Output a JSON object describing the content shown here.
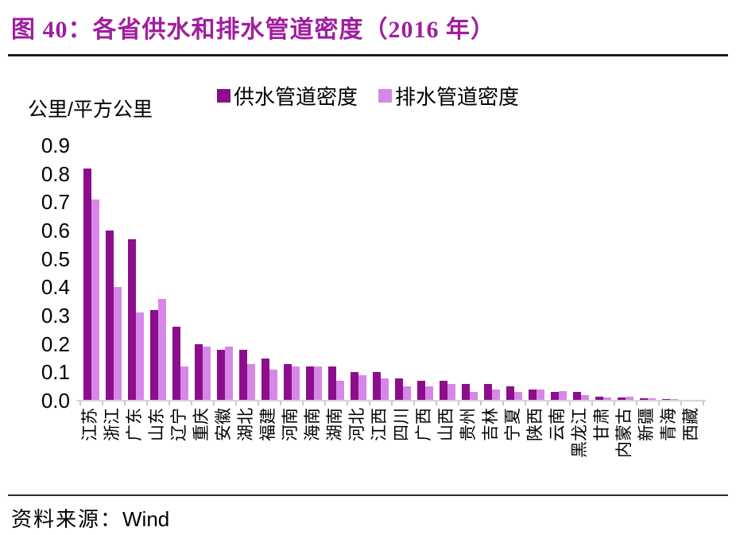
{
  "title": "图 40：各省供水和排水管道密度（2016 年）",
  "unit_label": "公里/平方公里",
  "source": {
    "prefix": "资料来源：",
    "name": "Wind"
  },
  "colors": {
    "title": "#A01D9E",
    "supply_bar": "#8C0E8C",
    "drain_bar": "#D787E8",
    "axis_line": "#D5D5D5"
  },
  "chart_data": {
    "type": "bar",
    "title": "各省供水和排水管道密度（2016 年）",
    "ylabel": "公里/平方公里",
    "xlabel": "",
    "ylim": [
      0,
      0.9
    ],
    "ytick_labels": [
      "0.0",
      "0.1",
      "0.2",
      "0.3",
      "0.4",
      "0.5",
      "0.6",
      "0.7",
      "0.8",
      "0.9"
    ],
    "grid": false,
    "legend_position": "top",
    "categories": [
      "江苏",
      "浙江",
      "广东",
      "山东",
      "辽宁",
      "重庆",
      "安徽",
      "湖北",
      "福建",
      "河南",
      "海南",
      "湖南",
      "河北",
      "江西",
      "四川",
      "广西",
      "山西",
      "贵州",
      "吉林",
      "宁夏",
      "陕西",
      "云南",
      "黑龙江",
      "甘肃",
      "内蒙古",
      "新疆",
      "青海",
      "西藏"
    ],
    "series": [
      {
        "key": "supply",
        "name": "供水管道密度",
        "color": "#8C0E8C",
        "values": [
          0.82,
          0.6,
          0.57,
          0.32,
          0.26,
          0.2,
          0.18,
          0.18,
          0.15,
          0.13,
          0.12,
          0.12,
          0.1,
          0.1,
          0.08,
          0.07,
          0.07,
          0.06,
          0.06,
          0.05,
          0.04,
          0.03,
          0.03,
          0.015,
          0.01,
          0.008,
          0.005,
          0.003
        ]
      },
      {
        "key": "drain",
        "name": "排水管道密度",
        "color": "#D787E8",
        "values": [
          0.71,
          0.4,
          0.31,
          0.36,
          0.12,
          0.19,
          0.19,
          0.13,
          0.11,
          0.12,
          0.12,
          0.07,
          0.09,
          0.08,
          0.05,
          0.05,
          0.06,
          0.03,
          0.04,
          0.03,
          0.04,
          0.035,
          0.02,
          0.012,
          0.015,
          0.008,
          0.005,
          0.004
        ]
      }
    ]
  }
}
